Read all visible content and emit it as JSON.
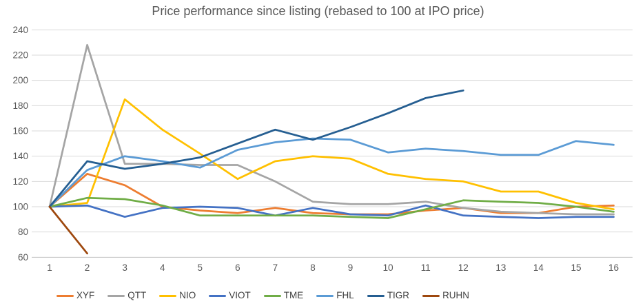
{
  "chart_data": {
    "type": "line",
    "title": "Price performance since listing (rebased to 100 at IPO price)",
    "xlabel": "",
    "ylabel": "",
    "x": [
      1,
      2,
      3,
      4,
      5,
      6,
      7,
      8,
      9,
      10,
      11,
      12,
      13,
      14,
      15,
      16
    ],
    "ylim": [
      60,
      240
    ],
    "ytick_step": 20,
    "grid": true,
    "legend_position": "bottom",
    "rebase_note": "all series start at 100 at x=1",
    "series": [
      {
        "name": "XYF",
        "color": "#ED7D31",
        "values": [
          100,
          126,
          117,
          100,
          97,
          95,
          99,
          95,
          94,
          94,
          97,
          99,
          95,
          95,
          100,
          101
        ]
      },
      {
        "name": "QTT",
        "color": "#A5A5A5",
        "values": [
          100,
          228,
          134,
          134,
          133,
          133,
          120,
          104,
          102,
          102,
          104,
          99,
          96,
          95,
          94,
          94
        ]
      },
      {
        "name": "NIO",
        "color": "#FFC000",
        "values": [
          100,
          103,
          185,
          161,
          142,
          122,
          136,
          140,
          138,
          126,
          122,
          120,
          112,
          112,
          103,
          98
        ]
      },
      {
        "name": "VIOT",
        "color": "#4472C4",
        "values": [
          100,
          101,
          92,
          99,
          100,
          99,
          93,
          99,
          94,
          93,
          101,
          93,
          92,
          91,
          92,
          92
        ]
      },
      {
        "name": "TME",
        "color": "#70AD47",
        "values": [
          100,
          107,
          106,
          101,
          93,
          93,
          93,
          93,
          92,
          91,
          98,
          105,
          104,
          103,
          100,
          96
        ]
      },
      {
        "name": "FHL",
        "color": "#5B9BD5",
        "values": [
          100,
          129,
          140,
          136,
          131,
          145,
          151,
          154,
          153,
          143,
          146,
          144,
          141,
          141,
          152,
          149
        ]
      },
      {
        "name": "TIGR",
        "color": "#255E91",
        "values": [
          100,
          136,
          130,
          134,
          139,
          150,
          161,
          153,
          163,
          174,
          186,
          192,
          null,
          null,
          null,
          null
        ]
      },
      {
        "name": "RUHN",
        "color": "#9E480E",
        "values": [
          100,
          63,
          null,
          null,
          null,
          null,
          null,
          null,
          null,
          null,
          null,
          null,
          null,
          null,
          null,
          null
        ]
      }
    ]
  },
  "style": {
    "gridline_color": "#D9D9D9",
    "axis_line_color": "#BFBFBF",
    "tick_label_color": "#595959",
    "title_color": "#595959",
    "legend_label_color": "#404040",
    "background": "#FFFFFF"
  }
}
